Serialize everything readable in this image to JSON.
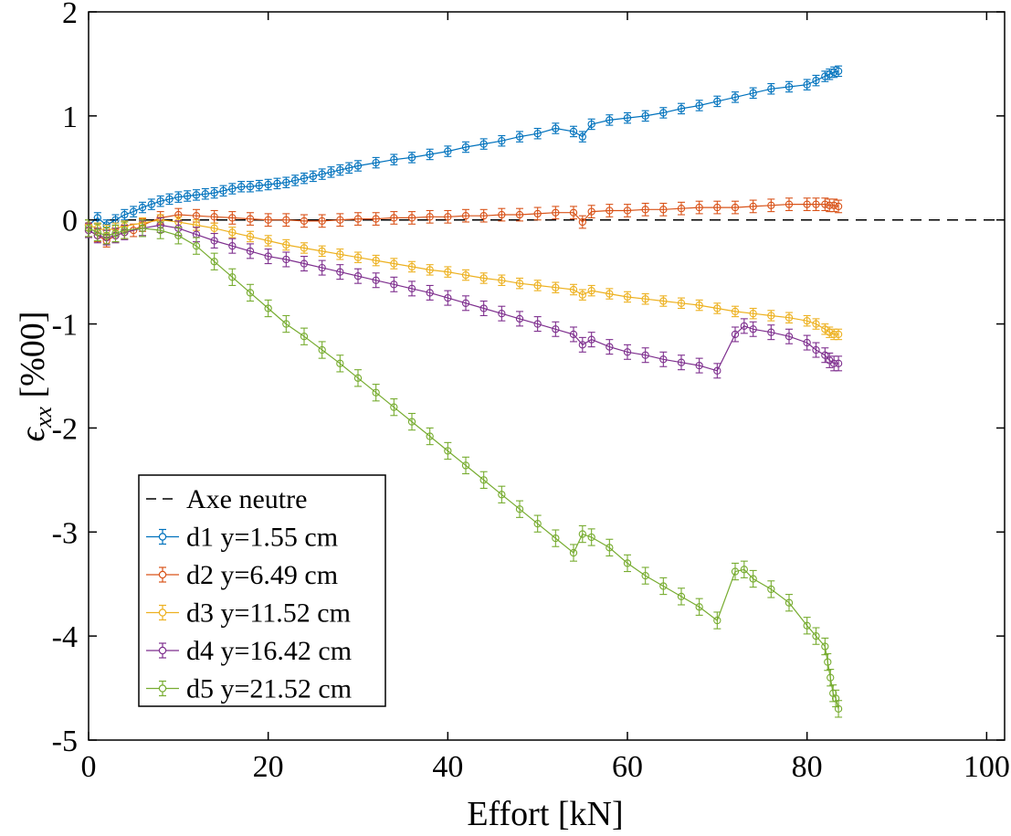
{
  "chart_data": {
    "type": "line",
    "xlabel": "Effort [kN]",
    "ylabel": "ϵxx [%00]",
    "ylabel_main": "ϵ",
    "ylabel_sub": "xx",
    "ylabel_unit": " [%00]",
    "xlim": [
      0,
      102
    ],
    "ylim": [
      -5,
      2
    ],
    "x_ticks": [
      "0",
      "20",
      "40",
      "60",
      "80",
      "100"
    ],
    "y_ticks": [
      "-5",
      "-4",
      "-3",
      "-2",
      "-1",
      "0",
      "1",
      "2"
    ],
    "grid": false,
    "legend_position": "bottom-left",
    "neutral_axis": {
      "name": "Axe neutre",
      "y": 0,
      "color": "#000000",
      "style": "dashed"
    },
    "series": [
      {
        "name": "d1 y=1.55 cm",
        "color": "#0072BD",
        "x": [
          0,
          1,
          2,
          3,
          4,
          5,
          6,
          7,
          8,
          9,
          10,
          11,
          12,
          13,
          14,
          15,
          16,
          17,
          18,
          19,
          20,
          21,
          22,
          23,
          24,
          25,
          26,
          27,
          28,
          29,
          30,
          32,
          34,
          36,
          38,
          40,
          42,
          44,
          46,
          48,
          50,
          52,
          54,
          55,
          56,
          58,
          60,
          62,
          64,
          66,
          68,
          70,
          72,
          74,
          76,
          78,
          80,
          81,
          82,
          82.5,
          83,
          83.5
        ],
        "y": [
          -0.05,
          0.02,
          -0.05,
          0.0,
          0.05,
          0.08,
          0.12,
          0.15,
          0.18,
          0.2,
          0.22,
          0.23,
          0.24,
          0.25,
          0.26,
          0.28,
          0.3,
          0.32,
          0.32,
          0.33,
          0.34,
          0.35,
          0.36,
          0.38,
          0.4,
          0.42,
          0.44,
          0.46,
          0.48,
          0.5,
          0.52,
          0.55,
          0.58,
          0.6,
          0.63,
          0.66,
          0.7,
          0.73,
          0.76,
          0.8,
          0.83,
          0.88,
          0.85,
          0.8,
          0.92,
          0.96,
          0.98,
          1.0,
          1.03,
          1.07,
          1.1,
          1.14,
          1.18,
          1.22,
          1.26,
          1.28,
          1.3,
          1.34,
          1.38,
          1.4,
          1.42,
          1.43
        ],
        "err": 0.05
      },
      {
        "name": "d2 y=6.49 cm",
        "color": "#D95319",
        "x": [
          0,
          1,
          2,
          3,
          4,
          5,
          6,
          8,
          10,
          12,
          14,
          16,
          18,
          20,
          22,
          24,
          26,
          28,
          30,
          32,
          34,
          36,
          38,
          40,
          42,
          44,
          46,
          48,
          50,
          52,
          54,
          55,
          56,
          58,
          60,
          62,
          64,
          66,
          68,
          70,
          72,
          74,
          76,
          78,
          80,
          81,
          82,
          82.5,
          83,
          83.5
        ],
        "y": [
          -0.1,
          -0.15,
          -0.2,
          -0.15,
          -0.12,
          -0.1,
          -0.05,
          0.02,
          0.05,
          0.04,
          0.03,
          0.02,
          0.01,
          0.0,
          0.0,
          -0.01,
          -0.01,
          0.0,
          0.01,
          0.01,
          0.02,
          0.02,
          0.03,
          0.03,
          0.04,
          0.04,
          0.05,
          0.05,
          0.06,
          0.07,
          0.07,
          -0.02,
          0.08,
          0.09,
          0.09,
          0.1,
          0.1,
          0.11,
          0.12,
          0.12,
          0.12,
          0.13,
          0.14,
          0.15,
          0.15,
          0.15,
          0.15,
          0.14,
          0.14,
          0.13
        ],
        "err": 0.06
      },
      {
        "name": "d3 y=11.52 cm",
        "color": "#EDB120",
        "x": [
          0,
          1,
          2,
          3,
          4,
          6,
          8,
          10,
          12,
          14,
          16,
          18,
          20,
          22,
          24,
          26,
          28,
          30,
          32,
          34,
          36,
          38,
          40,
          42,
          44,
          46,
          48,
          50,
          52,
          54,
          55,
          56,
          58,
          60,
          62,
          64,
          66,
          68,
          70,
          72,
          74,
          76,
          78,
          80,
          81,
          82,
          82.5,
          83,
          83.5
        ],
        "y": [
          -0.05,
          -0.08,
          -0.1,
          -0.08,
          -0.06,
          -0.03,
          0.0,
          -0.02,
          -0.05,
          -0.08,
          -0.12,
          -0.16,
          -0.2,
          -0.24,
          -0.27,
          -0.3,
          -0.33,
          -0.36,
          -0.39,
          -0.42,
          -0.45,
          -0.48,
          -0.5,
          -0.53,
          -0.56,
          -0.58,
          -0.61,
          -0.63,
          -0.65,
          -0.67,
          -0.72,
          -0.68,
          -0.71,
          -0.74,
          -0.76,
          -0.78,
          -0.8,
          -0.82,
          -0.85,
          -0.88,
          -0.9,
          -0.92,
          -0.94,
          -0.97,
          -1.0,
          -1.05,
          -1.08,
          -1.1,
          -1.1
        ],
        "err": 0.05
      },
      {
        "name": "d4 y=16.42 cm",
        "color": "#7E2F8E",
        "x": [
          0,
          1,
          2,
          3,
          4,
          6,
          8,
          10,
          12,
          14,
          16,
          18,
          20,
          22,
          24,
          26,
          28,
          30,
          32,
          34,
          36,
          38,
          40,
          42,
          44,
          46,
          48,
          50,
          52,
          54,
          55,
          56,
          58,
          60,
          62,
          64,
          66,
          68,
          70,
          72,
          73,
          74,
          76,
          78,
          80,
          81,
          82,
          82.5,
          83,
          83.5
        ],
        "y": [
          -0.1,
          -0.15,
          -0.17,
          -0.15,
          -0.12,
          -0.08,
          -0.05,
          -0.08,
          -0.14,
          -0.2,
          -0.25,
          -0.3,
          -0.35,
          -0.38,
          -0.42,
          -0.46,
          -0.5,
          -0.54,
          -0.58,
          -0.62,
          -0.66,
          -0.7,
          -0.75,
          -0.8,
          -0.85,
          -0.9,
          -0.95,
          -1.0,
          -1.05,
          -1.1,
          -1.2,
          -1.15,
          -1.22,
          -1.27,
          -1.3,
          -1.34,
          -1.37,
          -1.4,
          -1.45,
          -1.1,
          -1.02,
          -1.05,
          -1.08,
          -1.12,
          -1.18,
          -1.25,
          -1.3,
          -1.35,
          -1.38,
          -1.38
        ],
        "err": 0.07
      },
      {
        "name": "d5 y=21.52 cm",
        "color": "#77AC30",
        "x": [
          0,
          1,
          2,
          3,
          4,
          6,
          8,
          10,
          12,
          14,
          16,
          18,
          20,
          22,
          24,
          26,
          28,
          30,
          32,
          34,
          36,
          38,
          40,
          42,
          44,
          46,
          48,
          50,
          52,
          54,
          55,
          56,
          58,
          60,
          62,
          64,
          66,
          68,
          70,
          72,
          73,
          74,
          76,
          78,
          80,
          81,
          82,
          82.3,
          82.6,
          82.9,
          83.2,
          83.5
        ],
        "y": [
          -0.08,
          -0.12,
          -0.15,
          -0.13,
          -0.1,
          -0.08,
          -0.1,
          -0.15,
          -0.25,
          -0.4,
          -0.55,
          -0.7,
          -0.85,
          -1.0,
          -1.12,
          -1.25,
          -1.38,
          -1.52,
          -1.66,
          -1.8,
          -1.94,
          -2.08,
          -2.22,
          -2.36,
          -2.5,
          -2.64,
          -2.78,
          -2.92,
          -3.06,
          -3.2,
          -3.02,
          -3.05,
          -3.15,
          -3.3,
          -3.42,
          -3.52,
          -3.62,
          -3.72,
          -3.85,
          -3.38,
          -3.36,
          -3.45,
          -3.55,
          -3.68,
          -3.9,
          -4.0,
          -4.1,
          -4.25,
          -4.4,
          -4.55,
          -4.6,
          -4.7
        ],
        "err": 0.08
      }
    ]
  }
}
